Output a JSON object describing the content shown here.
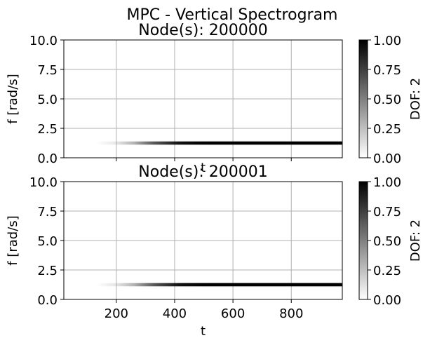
{
  "suptitle": "MPC - Vertical Spectrogram",
  "colors": {
    "grid": "#b0b0b0",
    "axis": "#000000",
    "background": "#ffffff",
    "cmap_low": "#ffffff",
    "cmap_high": "#000000"
  },
  "chart_data": [
    {
      "type": "heatmap",
      "title": "Node(s): 200000",
      "xlabel": "t",
      "ylabel": "f [rad/s]",
      "xlim": [
        20,
        975
      ],
      "ylim": [
        0,
        10
      ],
      "xticks": [
        200,
        400,
        600,
        800
      ],
      "xtick_labels_visible": false,
      "yticks": [
        0.0,
        2.5,
        5.0,
        7.5,
        10.0
      ],
      "ytick_labels": [
        "0.0",
        "2.5",
        "5.0",
        "7.5",
        "10.0"
      ],
      "grid": true,
      "band": {
        "frequency": 1.25,
        "bandwidth": 0.25,
        "fade_in": [
          {
            "t": 130,
            "intensity": 0.0
          },
          {
            "t": 200,
            "intensity": 0.08
          },
          {
            "t": 260,
            "intensity": 0.25
          },
          {
            "t": 330,
            "intensity": 0.6
          },
          {
            "t": 420,
            "intensity": 0.92
          },
          {
            "t": 500,
            "intensity": 1.0
          },
          {
            "t": 975,
            "intensity": 1.0
          }
        ]
      },
      "colorbar": {
        "label": "DOF: 2",
        "range": [
          0.0,
          1.0
        ],
        "ticks": [
          0.0,
          0.25,
          0.5,
          0.75,
          1.0
        ],
        "tick_labels": [
          "0.00",
          "0.25",
          "0.50",
          "0.75",
          "1.00"
        ]
      }
    },
    {
      "type": "heatmap",
      "title": "Node(s): 200001",
      "xlabel": "t",
      "ylabel": "f [rad/s]",
      "xlim": [
        20,
        975
      ],
      "ylim": [
        0,
        10
      ],
      "xticks": [
        200,
        400,
        600,
        800
      ],
      "xtick_labels": [
        "200",
        "400",
        "600",
        "800"
      ],
      "xtick_labels_visible": true,
      "yticks": [
        0.0,
        2.5,
        5.0,
        7.5,
        10.0
      ],
      "ytick_labels": [
        "0.0",
        "2.5",
        "5.0",
        "7.5",
        "10.0"
      ],
      "grid": true,
      "band": {
        "frequency": 1.25,
        "bandwidth": 0.25,
        "fade_in": [
          {
            "t": 130,
            "intensity": 0.0
          },
          {
            "t": 200,
            "intensity": 0.08
          },
          {
            "t": 260,
            "intensity": 0.25
          },
          {
            "t": 330,
            "intensity": 0.6
          },
          {
            "t": 420,
            "intensity": 0.92
          },
          {
            "t": 500,
            "intensity": 1.0
          },
          {
            "t": 975,
            "intensity": 1.0
          }
        ]
      },
      "colorbar": {
        "label": "DOF: 2",
        "range": [
          0.0,
          1.0
        ],
        "ticks": [
          0.0,
          0.25,
          0.5,
          0.75,
          1.0
        ],
        "tick_labels": [
          "0.00",
          "0.25",
          "0.50",
          "0.75",
          "1.00"
        ]
      }
    }
  ]
}
